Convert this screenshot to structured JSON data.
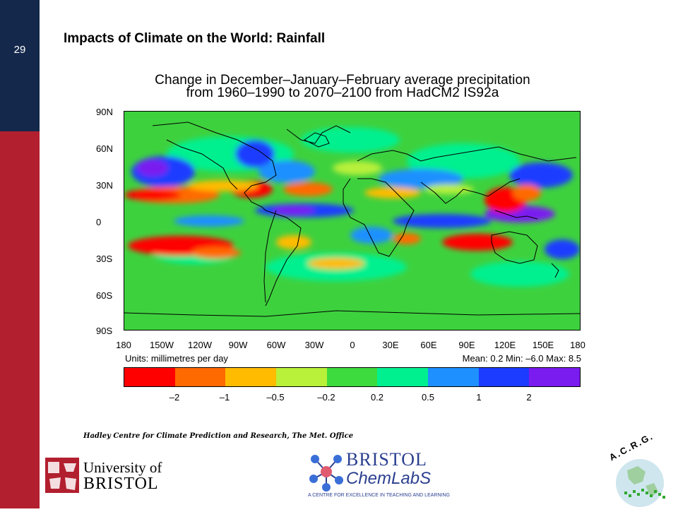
{
  "slide": {
    "number": "29",
    "title": "Impacts of Climate on the World: Rainfall",
    "credit": "Hadley Centre for Climate Prediction and Research, The Met. Office"
  },
  "map": {
    "title_line1": "Change in December–January–February average precipitation",
    "title_line2": "from 1960–1990 to 2070–2100 from HadCM2 IS92a",
    "lat_labels": [
      "90N",
      "60N",
      "30N",
      "0",
      "30S",
      "60S",
      "90S"
    ],
    "lon_labels": [
      "180",
      "150W",
      "120W",
      "90W",
      "60W",
      "30W",
      "0",
      "30E",
      "60E",
      "90E",
      "120E",
      "150E",
      "180"
    ],
    "units": "Units: millimetres per day",
    "stats": "Mean:  0.2 Min:  –6.0 Max:  8.5",
    "colorbar_ticks": [
      "–2",
      "–1",
      "–0.5",
      "–0.2",
      "0.2",
      "0.5",
      "1",
      "2"
    ],
    "colorbar_colors": [
      "#ff0000",
      "#ff6a00",
      "#ffbb00",
      "#b8f03a",
      "#3edb3e",
      "#00f090",
      "#1e90ff",
      "#1c3cff",
      "#7a1cf0"
    ]
  },
  "logos": {
    "uob_line1": "University of",
    "uob_line2": "BRISTOL",
    "chem_line1": "BRISTOL",
    "chem_line2": "ChemLabS",
    "chem_tagline": "A CENTRE FOR EXCELLENCE IN TEACHING AND LEARNING",
    "acrg": "A.C.R.G."
  }
}
